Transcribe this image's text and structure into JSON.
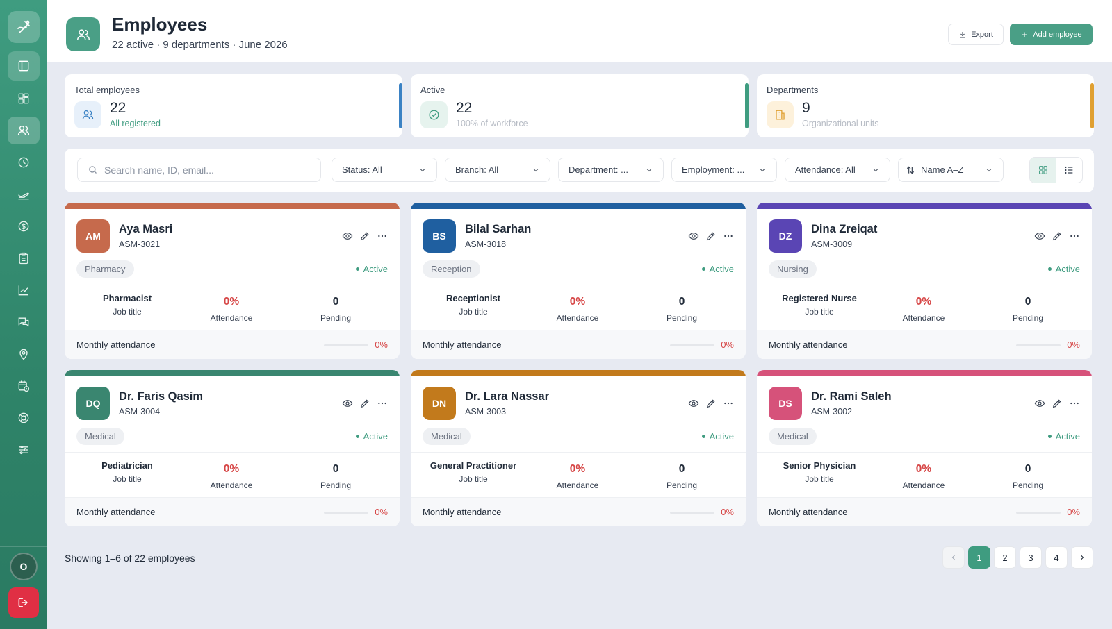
{
  "header": {
    "title": "Employees",
    "subtitle": "22 active · 9 departments · June 2026",
    "export_label": "Export",
    "add_label": "Add employee"
  },
  "stats": [
    {
      "label": "Total employees",
      "value": "22",
      "note": "All registered",
      "accent": "#3b82c4",
      "icon": "users-icon"
    },
    {
      "label": "Active",
      "value": "22",
      "note": "100% of workforce",
      "accent": "#3f9c80",
      "icon": "check-circle-icon"
    },
    {
      "label": "Departments",
      "value": "9",
      "note": "Organizational units",
      "accent": "#e0a032",
      "icon": "building-icon"
    }
  ],
  "search": {
    "placeholder": "Search name, ID, email..."
  },
  "filters": {
    "status": "Status: All",
    "branch": "Branch: All",
    "department": "Department: ...",
    "employment": "Employment: ...",
    "attendance": "Attendance: All",
    "sort": "Name A–Z"
  },
  "cards": [
    {
      "initials": "AM",
      "name": "Aya Masri",
      "id": "ASM-3021",
      "dept": "Pharmacy",
      "status": "Active",
      "job": "Pharmacist",
      "job_label": "Job title",
      "attendance": "0%",
      "attendance_label": "Attendance",
      "pending": "0",
      "pending_label": "Pending",
      "monthly_label": "Monthly attendance",
      "monthly": "0%",
      "monthly_fraction": 0,
      "color": "#c66a4c"
    },
    {
      "initials": "BS",
      "name": "Bilal Sarhan",
      "id": "ASM-3018",
      "dept": "Reception",
      "status": "Active",
      "job": "Receptionist",
      "job_label": "Job title",
      "attendance": "0%",
      "attendance_label": "Attendance",
      "pending": "0",
      "pending_label": "Pending",
      "monthly_label": "Monthly attendance",
      "monthly": "0%",
      "monthly_fraction": 0,
      "color": "#1f5fa0"
    },
    {
      "initials": "DZ",
      "name": "Dina Zreiqat",
      "id": "ASM-3009",
      "dept": "Nursing",
      "status": "Active",
      "job": "Registered Nurse",
      "job_label": "Job title",
      "attendance": "0%",
      "attendance_label": "Attendance",
      "pending": "0",
      "pending_label": "Pending",
      "monthly_label": "Monthly attendance",
      "monthly": "0%",
      "monthly_fraction": 0,
      "color": "#5a45b4"
    },
    {
      "initials": "DQ",
      "name": "Dr. Faris Qasim",
      "id": "ASM-3004",
      "dept": "Medical",
      "status": "Active",
      "job": "Pediatrician",
      "job_label": "Job title",
      "attendance": "0%",
      "attendance_label": "Attendance",
      "pending": "0",
      "pending_label": "Pending",
      "monthly_label": "Monthly attendance",
      "monthly": "0%",
      "monthly_fraction": 0,
      "color": "#3a8670"
    },
    {
      "initials": "DN",
      "name": "Dr. Lara Nassar",
      "id": "ASM-3003",
      "dept": "Medical",
      "status": "Active",
      "job": "General Practitioner",
      "job_label": "Job title",
      "attendance": "0%",
      "attendance_label": "Attendance",
      "pending": "0",
      "pending_label": "Pending",
      "monthly_label": "Monthly attendance",
      "monthly": "0%",
      "monthly_fraction": 0,
      "color": "#c27a1c"
    },
    {
      "initials": "DS",
      "name": "Dr. Rami Saleh",
      "id": "ASM-3002",
      "dept": "Medical",
      "status": "Active",
      "job": "Senior Physician",
      "job_label": "Job title",
      "attendance": "0%",
      "attendance_label": "Attendance",
      "pending": "0",
      "pending_label": "Pending",
      "monthly_label": "Monthly attendance",
      "monthly": "0%",
      "monthly_fraction": 0,
      "color": "#d6527a"
    }
  ],
  "footer": {
    "showing": "Showing 1–6 of 22 employees",
    "pages": [
      "1",
      "2",
      "3",
      "4"
    ],
    "current_page": "1"
  },
  "user": {
    "initial": "O"
  },
  "sidebar_icons": [
    "dashboard-icon",
    "users-icon",
    "clock-icon",
    "plane-icon",
    "dollar-icon",
    "clipboard-icon",
    "chart-icon",
    "messages-icon",
    "location-icon",
    "calendar-clock-icon",
    "lifebuoy-icon",
    "sliders-icon"
  ]
}
